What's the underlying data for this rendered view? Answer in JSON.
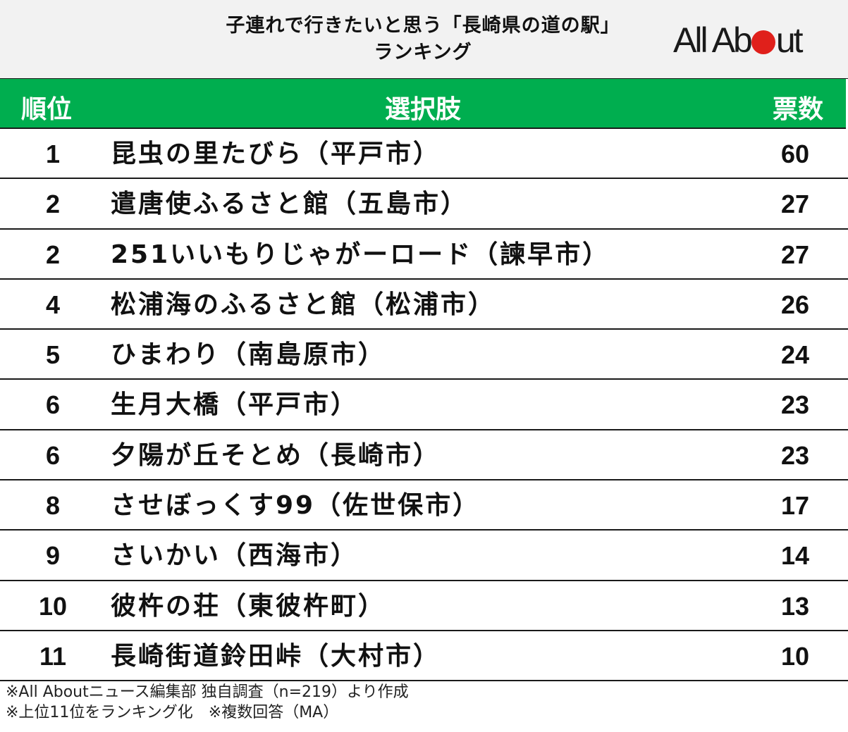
{
  "header": {
    "title_line1": "子連れで行きたいと思う「長崎県の道の駅」",
    "title_line2": "ランキング",
    "logo": {
      "text_before": "All Ab",
      "dot_icon": "red-circle",
      "text_after": "ut",
      "dot_color": "#e0201b"
    }
  },
  "table": {
    "columns": {
      "rank": "順位",
      "choice": "選択肢",
      "votes": "票数"
    },
    "header_color": "#00ae4f",
    "rows": [
      {
        "rank": "1",
        "name": "昆虫の里たびら（平戸市）",
        "votes": "60"
      },
      {
        "rank": "2",
        "name": "遣唐使ふるさと館（五島市）",
        "votes": "27"
      },
      {
        "rank": "2",
        "name": "251いいもりじゃがーロード（諫早市）",
        "votes": "27"
      },
      {
        "rank": "4",
        "name": "松浦海のふるさと館（松浦市）",
        "votes": "26"
      },
      {
        "rank": "5",
        "name": "ひまわり（南島原市）",
        "votes": "24"
      },
      {
        "rank": "6",
        "name": "生月大橋（平戸市）",
        "votes": "23"
      },
      {
        "rank": "6",
        "name": "夕陽が丘そとめ（長崎市）",
        "votes": "23"
      },
      {
        "rank": "8",
        "name": "させぼっくす99（佐世保市）",
        "votes": "17"
      },
      {
        "rank": "9",
        "name": "さいかい（西海市）",
        "votes": "14"
      },
      {
        "rank": "10",
        "name": "彼杵の荘（東彼杵町）",
        "votes": "13"
      },
      {
        "rank": "11",
        "name": "長崎街道鈴田峠（大村市）",
        "votes": "10"
      }
    ]
  },
  "notes": {
    "line1": "※All Aboutニュース編集部 独自調査（n=219）より作成",
    "line2": "※上位11位をランキング化　※複数回答（MA）"
  },
  "chart_data": {
    "type": "table",
    "title": "子連れで行きたいと思う「長崎県の道の駅」ランキング",
    "columns": [
      "順位",
      "選択肢",
      "票数"
    ],
    "categories": [
      "昆虫の里たびら（平戸市）",
      "遣唐使ふるさと館（五島市）",
      "251いいもりじゃがーロード（諫早市）",
      "松浦海のふるさと館（松浦市）",
      "ひまわり（南島原市）",
      "生月大橋（平戸市）",
      "夕陽が丘そとめ（長崎市）",
      "させぼっくす99（佐世保市）",
      "さいかい（西海市）",
      "彼杵の荘（東彼杵町）",
      "長崎街道鈴田峠（大村市）"
    ],
    "ranks": [
      1,
      2,
      2,
      4,
      5,
      6,
      6,
      8,
      9,
      10,
      11
    ],
    "values": [
      60,
      27,
      27,
      26,
      24,
      23,
      23,
      17,
      14,
      13,
      10
    ],
    "notes": [
      "※All Aboutニュース編集部 独自調査（n=219）より作成",
      "※上位11位をランキング化　※複数回答（MA）"
    ]
  }
}
